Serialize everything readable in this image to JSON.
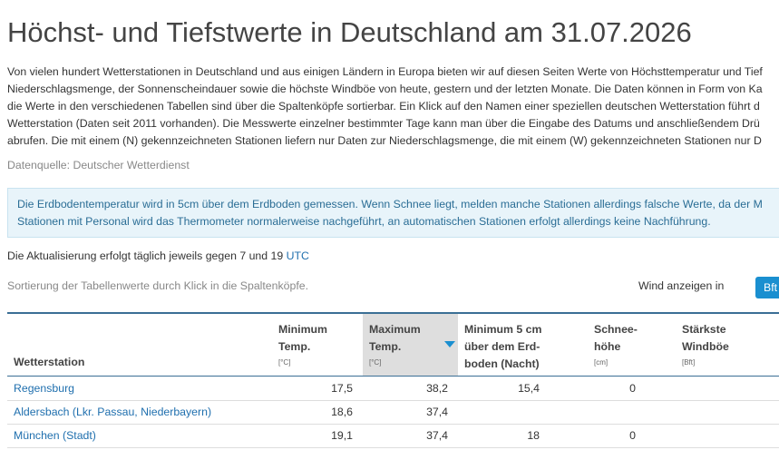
{
  "header": {
    "title": "Höchst- und Tiefstwerte in Deutschland am 31.07.2026"
  },
  "intro": [
    "Von vielen hundert Wetterstationen in Deutschland und aus einigen Ländern in Europa bieten wir auf diesen Seiten Werte von Höchsttemperatur und Tief",
    "Niederschlagsmenge, der Sonnenscheindauer sowie die höchste Windböe von heute, gestern und der letzten Monate. Die Daten können in Form von Ka",
    "die Werte in den verschiedenen Tabellen sind über die Spaltenköpfe sortierbar. Ein Klick auf den Namen einer speziellen deutschen Wetterstation führt d",
    "Wetterstation (Daten seit 2011 vorhanden). Die Messwerte einzelner bestimmter Tage kann man über die Eingabe des Datums und anschließendem Drü",
    "abrufen. Die mit einem (N) gekennzeichneten Stationen liefern nur Daten zur Niederschlagsmenge, die mit einem (W) gekennzeichneten Stationen nur D"
  ],
  "source": "Datenquelle: Deutscher Wetterdienst",
  "info": [
    "Die Erdbodentemperatur wird in 5cm über dem Erdboden gemessen. Wenn Schnee liegt, melden manche Stationen allerdings falsche Werte, da der M",
    "Stationen mit Personal wird das Thermometer normalerweise nachgeführt, an automatischen Stationen erfolgt allerdings keine Nachführung."
  ],
  "update": {
    "text": "Die Aktualisierung erfolgt täglich jeweils gegen 7 und 19",
    "link": "UTC"
  },
  "sorting": "Sortierung der Tabellenwerte durch Klick in die Spaltenköpfe.",
  "wind": {
    "label": "Wind anzeigen in",
    "button": "Bft"
  },
  "table": {
    "columns": [
      {
        "lines": [
          "Wetterstation"
        ]
      },
      {
        "lines": [
          "Minimum",
          "Temp."
        ],
        "unit": "[°C]"
      },
      {
        "lines": [
          "Maximum",
          "Temp."
        ],
        "unit": "[°C]",
        "sorted": true
      },
      {
        "lines": [
          "Minimum 5 cm",
          "über dem Erd-",
          "boden (Nacht)"
        ]
      },
      {
        "lines": [
          "Schnee-",
          "höhe"
        ],
        "unit": "[cm]"
      },
      {
        "lines": [
          "Stärkste",
          "Windböe"
        ],
        "unit": "[Bft]"
      }
    ],
    "rows": [
      [
        "Regensburg",
        "17,5",
        "38,2",
        "15,4",
        "0",
        null
      ],
      [
        "Aldersbach (Lkr. Passau, Niederbayern)",
        "18,6",
        "37,4",
        null,
        null,
        null
      ],
      [
        "München (Stadt)",
        "19,1",
        "37,4",
        "18",
        "0",
        null
      ]
    ]
  }
}
